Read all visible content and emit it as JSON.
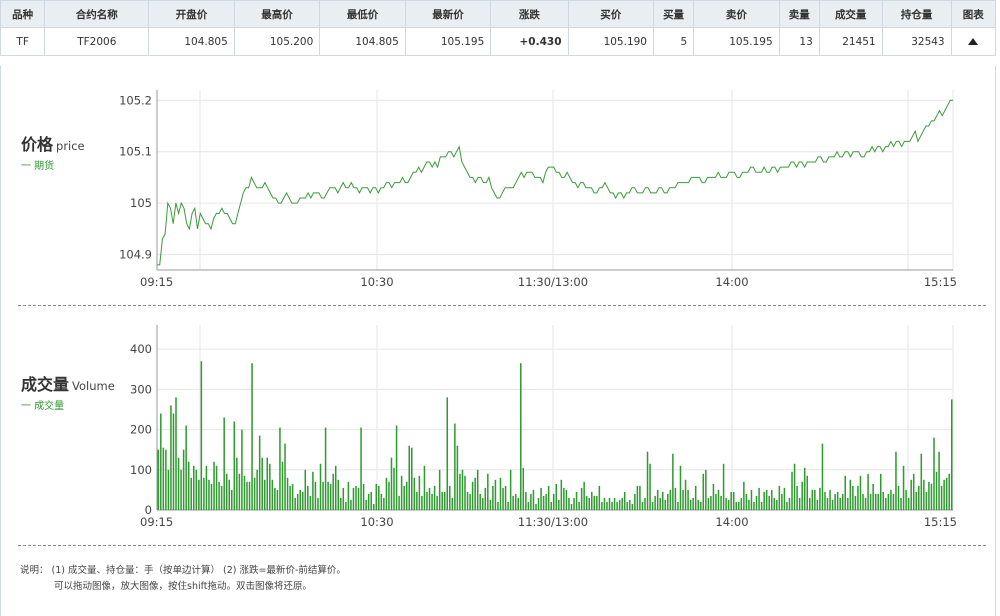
{
  "table": {
    "headers": [
      "品种",
      "合约名称",
      "开盘价",
      "最高价",
      "最低价",
      "最新价",
      "涨跌",
      "买价",
      "买量",
      "卖价",
      "卖量",
      "成交量",
      "持仓量",
      "图表"
    ],
    "row": {
      "variety": "TF",
      "contract": "TF2006",
      "open": "104.805",
      "high": "105.200",
      "low": "104.805",
      "last": "105.195",
      "change": "+0.430",
      "bid": "105.190",
      "bid_vol": "5",
      "ask": "105.195",
      "ask_vol": "13",
      "volume": "21451",
      "open_interest": "32543"
    }
  },
  "price_panel": {
    "title_zh": "价格",
    "title_en": "price",
    "legend": "一 期货"
  },
  "volume_panel": {
    "title_zh": "成交量",
    "title_en": "Volume",
    "legend": "一 成交量"
  },
  "notes": {
    "line1": "说明：  (1) 成交量、持仓量：手（按单边计算）        (2) 涨跌=最新价-前结算价。",
    "line2": "可以拖动图像，放大图像，按住shift拖动。双击图像将还原。"
  },
  "colors": {
    "line": "#3a9b3a",
    "bar": "#2e9b2e",
    "up": "#e60012",
    "grid": "#e6e6e6"
  },
  "chart_data": [
    {
      "type": "line",
      "title": "",
      "series": [
        {
          "name": "期货",
          "x_range": [
            "09:15",
            "15:15"
          ],
          "values": [
            104.88,
            104.88,
            104.93,
            104.94,
            105.0,
            104.99,
            104.96,
            105.0,
            104.98,
            105.0,
            104.99,
            104.96,
            104.95,
            104.98,
            104.99,
            104.95,
            104.98,
            104.97,
            104.96,
            104.96,
            104.95,
            104.97,
            104.98,
            104.98,
            104.99,
            104.98,
            104.98,
            104.97,
            104.96,
            104.96,
            104.98,
            105.0,
            105.02,
            105.03,
            105.03,
            105.05,
            105.04,
            105.03,
            105.03,
            105.03,
            105.04,
            105.03,
            105.02,
            105.01,
            105.01,
            105.0,
            105.0,
            105.01,
            105.02,
            105.01,
            105.0,
            105.0,
            105.0,
            105.01,
            105.01,
            105.01,
            105.02,
            105.01,
            105.02,
            105.02,
            105.02,
            105.01,
            105.01,
            105.02,
            105.03,
            105.03,
            105.03,
            105.02,
            105.03,
            105.04,
            105.03,
            105.03,
            105.04,
            105.03,
            105.03,
            105.02,
            105.03,
            105.03,
            105.03,
            105.02,
            105.03,
            105.03,
            105.02,
            105.03,
            105.03,
            105.04,
            105.04,
            105.03,
            105.04,
            105.04,
            105.04,
            105.05,
            105.04,
            105.04,
            105.05,
            105.06,
            105.06,
            105.07,
            105.06,
            105.07,
            105.08,
            105.08,
            105.07,
            105.08,
            105.07,
            105.09,
            105.09,
            105.09,
            105.1,
            105.1,
            105.09,
            105.1,
            105.11,
            105.08,
            105.07,
            105.06,
            105.05,
            105.05,
            105.04,
            105.05,
            105.05,
            105.04,
            105.04,
            105.05,
            105.03,
            105.02,
            105.01,
            105.01,
            105.02,
            105.03,
            105.03,
            105.03,
            105.03,
            105.04,
            105.05,
            105.06,
            105.05,
            105.06,
            105.06,
            105.06,
            105.05,
            105.05,
            105.05,
            105.04,
            105.06,
            105.07,
            105.07,
            105.07,
            105.06,
            105.06,
            105.05,
            105.05,
            105.06,
            105.05,
            105.04,
            105.04,
            105.03,
            105.04,
            105.04,
            105.03,
            105.03,
            105.03,
            105.02,
            105.02,
            105.03,
            105.03,
            105.04,
            105.03,
            105.02,
            105.02,
            105.01,
            105.02,
            105.02,
            105.01,
            105.02,
            105.02,
            105.03,
            105.03,
            105.02,
            105.02,
            105.02,
            105.03,
            105.03,
            105.02,
            105.02,
            105.02,
            105.03,
            105.03,
            105.02,
            105.02,
            105.03,
            105.03,
            105.03,
            105.04,
            105.04,
            105.04,
            105.04,
            105.04,
            105.05,
            105.05,
            105.05,
            105.05,
            105.04,
            105.04,
            105.05,
            105.05,
            105.05,
            105.05,
            105.06,
            105.05,
            105.05,
            105.05,
            105.06,
            105.06,
            105.06,
            105.05,
            105.05,
            105.06,
            105.06,
            105.06,
            105.07,
            105.07,
            105.06,
            105.06,
            105.06,
            105.07,
            105.06,
            105.06,
            105.07,
            105.07,
            105.06,
            105.07,
            105.07,
            105.07,
            105.07,
            105.08,
            105.08,
            105.07,
            105.08,
            105.08,
            105.07,
            105.08,
            105.08,
            105.08,
            105.08,
            105.09,
            105.09,
            105.08,
            105.08,
            105.09,
            105.09,
            105.09,
            105.1,
            105.09,
            105.09,
            105.1,
            105.1,
            105.09,
            105.1,
            105.1,
            105.1,
            105.09,
            105.09,
            105.1,
            105.1,
            105.11,
            105.1,
            105.11,
            105.11,
            105.1,
            105.11,
            105.11,
            105.12,
            105.11,
            105.12,
            105.12,
            105.11,
            105.12,
            105.12,
            105.12,
            105.13,
            105.14,
            105.12,
            105.13,
            105.14,
            105.15,
            105.15,
            105.16,
            105.16,
            105.17,
            105.18,
            105.17,
            105.18,
            105.19,
            105.2,
            105.2
          ]
        }
      ],
      "y_ticks": [
        104.9,
        105,
        105.1,
        105.2
      ],
      "x_ticks": [
        "09:15",
        "10:30",
        "11:30/13:00",
        "14:00",
        "15:15"
      ],
      "ylim": [
        104.87,
        105.22
      ],
      "grid": true
    },
    {
      "type": "bar",
      "title": "",
      "series": [
        {
          "name": "成交量",
          "values": [
            150,
            240,
            155,
            150,
            100,
            260,
            240,
            280,
            130,
            100,
            150,
            210,
            120,
            80,
            110,
            100,
            75,
            370,
            80,
            110,
            75,
            65,
            120,
            110,
            70,
            60,
            230,
            90,
            75,
            50,
            220,
            130,
            90,
            200,
            85,
            70,
            70,
            365,
            80,
            100,
            185,
            130,
            75,
            130,
            115,
            75,
            55,
            50,
            205,
            120,
            165,
            80,
            60,
            65,
            30,
            40,
            50,
            45,
            100,
            60,
            35,
            95,
            70,
            30,
            115,
            70,
            205,
            70,
            65,
            90,
            110,
            75,
            30,
            55,
            20,
            70,
            25,
            55,
            60,
            55,
            205,
            65,
            25,
            40,
            45,
            15,
            65,
            60,
            40,
            30,
            80,
            70,
            130,
            105,
            210,
            35,
            85,
            60,
            70,
            160,
            155,
            80,
            45,
            85,
            35,
            110,
            45,
            55,
            40,
            60,
            35,
            100,
            45,
            45,
            280,
            60,
            30,
            215,
            160,
            90,
            100,
            85,
            45,
            40,
            70,
            80,
            100,
            40,
            30,
            55,
            90,
            25,
            60,
            75,
            20,
            80,
            55,
            60,
            20,
            100,
            35,
            40,
            30,
            365,
            105,
            45,
            20,
            40,
            50,
            15,
            30,
            55,
            35,
            40,
            60,
            20,
            40,
            65,
            25,
            75,
            55,
            50,
            30,
            15,
            30,
            45,
            20,
            55,
            70,
            35,
            30,
            45,
            35,
            35,
            60,
            20,
            30,
            20,
            30,
            20,
            30,
            20,
            25,
            30,
            45,
            20,
            25,
            15,
            40,
            60,
            60,
            20,
            30,
            145,
            115,
            20,
            35,
            50,
            30,
            45,
            25,
            40,
            50,
            140,
            55,
            20,
            110,
            50,
            75,
            50,
            25,
            30,
            60,
            25,
            20,
            90,
            100,
            30,
            35,
            65,
            40,
            50,
            35,
            115,
            30,
            25,
            45,
            45,
            20,
            20,
            30,
            70,
            40,
            25,
            50,
            20,
            35,
            55,
            20,
            45,
            50,
            35,
            50,
            30,
            25,
            60,
            40,
            55,
            20,
            30,
            95,
            115,
            60,
            30,
            70,
            105,
            85,
            30,
            50,
            50,
            25,
            55,
            165,
            45,
            30,
            50,
            25,
            40,
            45,
            30,
            40,
            85,
            30,
            75,
            60,
            35,
            60,
            85,
            40,
            30,
            90,
            40,
            65,
            40,
            40,
            90,
            45,
            30,
            40,
            50,
            40,
            145,
            60,
            30,
            110,
            50,
            30,
            75,
            90,
            45,
            60,
            140,
            75,
            45,
            70,
            65,
            180,
            95,
            145,
            60,
            75,
            80,
            90,
            275
          ]
        }
      ],
      "y_ticks": [
        0,
        100,
        200,
        300,
        400
      ],
      "x_ticks": [
        "09:15",
        "10:30",
        "11:30/13:00",
        "14:00",
        "15:15"
      ],
      "ylim": [
        0,
        460
      ],
      "grid": true
    }
  ]
}
